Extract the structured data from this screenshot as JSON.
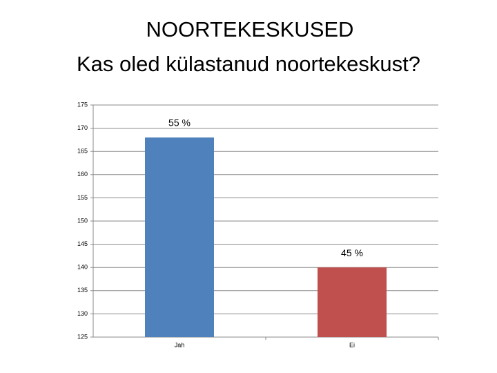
{
  "chart_data": {
    "type": "bar",
    "title": "NOORTEKESKUSED",
    "subtitle": "Kas oled külastanud noortekeskust?",
    "categories": [
      "Jah",
      "Ei"
    ],
    "values": [
      168,
      140
    ],
    "colors": [
      "#4f81bd",
      "#c0504d"
    ],
    "annotations": [
      "55 %",
      "45 %"
    ],
    "ylim": [
      125,
      175
    ],
    "yticks": [
      125,
      130,
      135,
      140,
      145,
      150,
      155,
      160,
      165,
      170,
      175
    ],
    "grid": true
  }
}
